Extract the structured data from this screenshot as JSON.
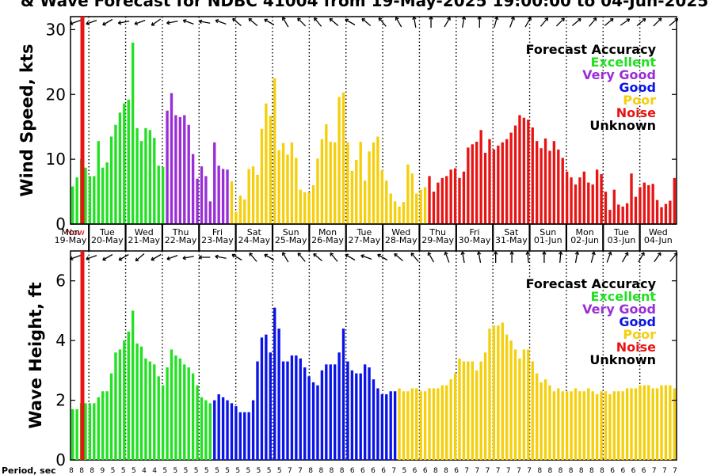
{
  "title": "& Wave Forecast for NDBC 41004 from 19-May-2025 19:00:00 to 04-Jun-2025",
  "colors": {
    "Excellent": "#22e022",
    "Very Good": "#9a2ed6",
    "Good": "#0a14e6",
    "Poor": "#f5cf0a",
    "Noise": "#e81414",
    "Unknown": "#000000"
  },
  "legend": {
    "title": "Forecast Accuracy",
    "items": [
      "Excellent",
      "Very Good",
      "Good",
      "Poor",
      "Noise",
      "Unknown"
    ]
  },
  "now_label": "Now",
  "period_label": "Period, sec",
  "x_axis": {
    "days": [
      "Mon",
      "Tue",
      "Wed",
      "Thu",
      "Fri",
      "Sat",
      "Sun",
      "Mon",
      "Tue",
      "Wed",
      "Thu",
      "Fri",
      "Sat",
      "Sun",
      "Mon",
      "Tue",
      "Wed"
    ],
    "dates": [
      "19-May",
      "20-May",
      "21-May",
      "22-May",
      "23-May",
      "24-May",
      "25-May",
      "26-May",
      "27-May",
      "28-May",
      "29-May",
      "30-May",
      "31-May",
      "01-Jun",
      "02-Jun",
      "03-Jun",
      "04-Jun"
    ]
  },
  "periods": [
    "8",
    "8",
    "8",
    "9",
    "5",
    "5",
    "5",
    "4",
    "4",
    "5",
    "5",
    "5",
    "5",
    "5",
    "5",
    "5",
    "5",
    "5",
    "5",
    "5",
    "5",
    "7",
    "7",
    "8",
    "8",
    "8",
    "8",
    "6",
    "6",
    "6",
    "6",
    "7",
    "5",
    "6",
    "6",
    "8",
    "8",
    "6",
    "7",
    "7",
    "7",
    "7",
    "7",
    "7",
    "7",
    "8",
    "8",
    "8",
    "8",
    "8",
    "8",
    "8",
    "6",
    "6",
    "6",
    "6",
    "7",
    "7",
    "7"
  ],
  "chart_data": [
    {
      "type": "bar",
      "ylabel": "Wind Speed, kts",
      "ylim": [
        0,
        32
      ],
      "yticks": [
        0,
        10,
        20,
        30
      ],
      "grid": "vertical dotted lines at midnight",
      "values": [
        5.8,
        7.2,
        10.0,
        8.7,
        7.4,
        7.4,
        12.8,
        8.7,
        9.5,
        13.5,
        15.3,
        17.2,
        18.6,
        19.2,
        28.0,
        14.8,
        12.8,
        14.8,
        14.5,
        13.3,
        9.0,
        8.8,
        17.5,
        20.2,
        16.8,
        16.5,
        16.8,
        15.3,
        10.8,
        7.0,
        8.9,
        7.4,
        3.5,
        12.6,
        9.0,
        8.5,
        8.4,
        6.6,
        1.9,
        4.4,
        3.8,
        8.5,
        8.9,
        7.6,
        14.7,
        18.6,
        16.7,
        22.5,
        11.4,
        12.5,
        10.7,
        12.6,
        10.2,
        5.3,
        4.9,
        4.9,
        6.0,
        10.1,
        13.1,
        15.4,
        12.7,
        12.6,
        19.6,
        20.3,
        12.6,
        8.2,
        9.9,
        12.7,
        6.7,
        11.2,
        12.6,
        13.5,
        8.3,
        6.7,
        4.7,
        3.5,
        2.7,
        3.4,
        9.2,
        7.8,
        4.7,
        5.3,
        5.7,
        7.4,
        5.0,
        6.4,
        7.1,
        7.4,
        8.4,
        8.6,
        7.1,
        8.1,
        11.8,
        12.3,
        12.7,
        14.5,
        11.0,
        13.1,
        11.5,
        12.1,
        12.6,
        13.1,
        14.1,
        15.2,
        16.8,
        16.4,
        16.1,
        14.9,
        12.8,
        11.7,
        13.2,
        11.3,
        12.8,
        11.5,
        10.2,
        8.1,
        7.2,
        6.1,
        7.2,
        8.1,
        6.4,
        6.1,
        8.4,
        7.7,
        5.0,
        2.2,
        5.3,
        3.0,
        2.7,
        3.2,
        7.8,
        4.2,
        5.7,
        6.4,
        6.0,
        6.2,
        3.7,
        2.6,
        3.1,
        3.6,
        7.1
      ],
      "colors": [
        "Excellent",
        "Excellent",
        "Excellent",
        "Excellent",
        "Excellent",
        "Excellent",
        "Excellent",
        "Excellent",
        "Excellent",
        "Excellent",
        "Excellent",
        "Excellent",
        "Excellent",
        "Excellent",
        "Excellent",
        "Excellent",
        "Excellent",
        "Excellent",
        "Excellent",
        "Excellent",
        "Excellent",
        "Excellent",
        "Very Good",
        "Very Good",
        "Very Good",
        "Very Good",
        "Very Good",
        "Very Good",
        "Very Good",
        "Very Good",
        "Very Good",
        "Very Good",
        "Very Good",
        "Very Good",
        "Very Good",
        "Very Good",
        "Very Good",
        "Poor",
        "Poor",
        "Poor",
        "Poor",
        "Poor",
        "Poor",
        "Poor",
        "Poor",
        "Poor",
        "Poor",
        "Poor",
        "Poor",
        "Poor",
        "Poor",
        "Poor",
        "Poor",
        "Poor",
        "Poor",
        "Poor",
        "Poor",
        "Poor",
        "Poor",
        "Poor",
        "Poor",
        "Poor",
        "Poor",
        "Poor",
        "Poor",
        "Poor",
        "Poor",
        "Poor",
        "Poor",
        "Poor",
        "Poor",
        "Poor",
        "Poor",
        "Poor",
        "Poor",
        "Poor",
        "Poor",
        "Poor",
        "Poor",
        "Poor",
        "Poor",
        "Poor",
        "Poor",
        "Noise",
        "Noise",
        "Noise",
        "Noise",
        "Noise",
        "Noise",
        "Noise",
        "Noise",
        "Noise",
        "Noise",
        "Noise",
        "Noise",
        "Noise",
        "Noise",
        "Noise",
        "Noise",
        "Noise",
        "Noise",
        "Noise",
        "Noise",
        "Noise",
        "Noise",
        "Noise",
        "Noise",
        "Noise",
        "Noise",
        "Noise",
        "Noise",
        "Noise",
        "Noise",
        "Noise",
        "Noise",
        "Noise",
        "Noise",
        "Noise",
        "Noise",
        "Noise",
        "Noise",
        "Noise",
        "Noise",
        "Noise",
        "Noise",
        "Noise",
        "Noise",
        "Noise",
        "Noise",
        "Noise",
        "Noise",
        "Noise",
        "Noise",
        "Noise",
        "Noise",
        "Noise",
        "Noise",
        "Noise",
        "Noise",
        "Noise",
        "Noise"
      ]
    },
    {
      "type": "bar",
      "ylabel": "Wave Height, ft",
      "ylim": [
        0,
        7
      ],
      "yticks": [
        0,
        2,
        4,
        6
      ],
      "grid": "vertical dotted lines at midnight",
      "values": [
        1.7,
        1.7,
        1.9,
        1.9,
        1.9,
        1.9,
        2.1,
        2.3,
        2.3,
        2.9,
        3.6,
        3.7,
        4.0,
        4.3,
        5.0,
        3.9,
        3.8,
        3.4,
        3.3,
        3.2,
        2.8,
        2.5,
        3.1,
        3.7,
        3.5,
        3.4,
        3.2,
        3.1,
        2.9,
        2.5,
        2.1,
        2.0,
        1.9,
        2.0,
        2.2,
        2.1,
        2.0,
        1.9,
        1.8,
        1.6,
        1.6,
        1.6,
        2.0,
        3.3,
        4.1,
        4.2,
        3.6,
        5.1,
        4.4,
        3.3,
        3.3,
        3.5,
        3.5,
        3.4,
        3.1,
        2.8,
        2.6,
        2.5,
        3.0,
        3.2,
        3.2,
        3.2,
        3.6,
        4.4,
        3.3,
        3.0,
        2.9,
        2.9,
        3.2,
        3.1,
        2.7,
        2.4,
        2.2,
        2.2,
        2.3,
        2.3,
        2.4,
        2.3,
        2.3,
        2.4,
        2.4,
        2.3,
        2.3,
        2.4,
        2.4,
        2.4,
        2.5,
        2.5,
        2.7,
        2.9,
        3.4,
        3.3,
        3.3,
        3.3,
        3.0,
        3.3,
        3.6,
        4.4,
        4.5,
        4.5,
        4.6,
        4.2,
        4.0,
        3.7,
        3.4,
        3.7,
        3.7,
        3.3,
        2.9,
        2.6,
        2.7,
        2.5,
        2.3,
        2.4,
        2.3,
        2.3,
        2.3,
        2.4,
        2.3,
        2.3,
        2.4,
        2.3,
        2.2,
        2.3,
        2.3,
        2.2,
        2.3,
        2.3,
        2.3,
        2.4,
        2.4,
        2.4,
        2.5,
        2.5,
        2.5,
        2.4,
        2.4,
        2.5,
        2.5,
        2.5,
        2.4
      ],
      "colors": [
        "Excellent",
        "Excellent",
        "Excellent",
        "Excellent",
        "Excellent",
        "Excellent",
        "Excellent",
        "Excellent",
        "Excellent",
        "Excellent",
        "Excellent",
        "Excellent",
        "Excellent",
        "Excellent",
        "Excellent",
        "Excellent",
        "Excellent",
        "Excellent",
        "Excellent",
        "Excellent",
        "Excellent",
        "Excellent",
        "Excellent",
        "Excellent",
        "Excellent",
        "Excellent",
        "Excellent",
        "Excellent",
        "Excellent",
        "Excellent",
        "Excellent",
        "Excellent",
        "Excellent",
        "Good",
        "Good",
        "Good",
        "Good",
        "Good",
        "Good",
        "Good",
        "Good",
        "Good",
        "Good",
        "Good",
        "Good",
        "Good",
        "Good",
        "Good",
        "Good",
        "Good",
        "Good",
        "Good",
        "Good",
        "Good",
        "Good",
        "Good",
        "Good",
        "Good",
        "Good",
        "Good",
        "Good",
        "Good",
        "Good",
        "Good",
        "Good",
        "Good",
        "Good",
        "Good",
        "Good",
        "Good",
        "Good",
        "Good",
        "Good",
        "Good",
        "Good",
        "Good",
        "Poor",
        "Poor",
        "Poor",
        "Poor",
        "Poor",
        "Poor",
        "Poor",
        "Poor",
        "Poor",
        "Poor",
        "Poor",
        "Poor",
        "Poor",
        "Poor",
        "Poor",
        "Poor",
        "Poor",
        "Poor",
        "Poor",
        "Poor",
        "Poor",
        "Poor",
        "Poor",
        "Poor",
        "Poor",
        "Poor",
        "Poor",
        "Poor",
        "Poor",
        "Poor",
        "Poor",
        "Poor",
        "Poor",
        "Poor",
        "Poor",
        "Poor",
        "Poor",
        "Poor",
        "Poor",
        "Poor",
        "Poor",
        "Poor",
        "Poor",
        "Poor",
        "Poor",
        "Poor",
        "Poor",
        "Poor",
        "Poor",
        "Poor",
        "Poor",
        "Poor",
        "Poor",
        "Poor",
        "Poor",
        "Poor",
        "Poor",
        "Poor",
        "Poor",
        "Poor",
        "Poor",
        "Poor",
        "Poor",
        "Poor",
        "Poor"
      ]
    }
  ]
}
